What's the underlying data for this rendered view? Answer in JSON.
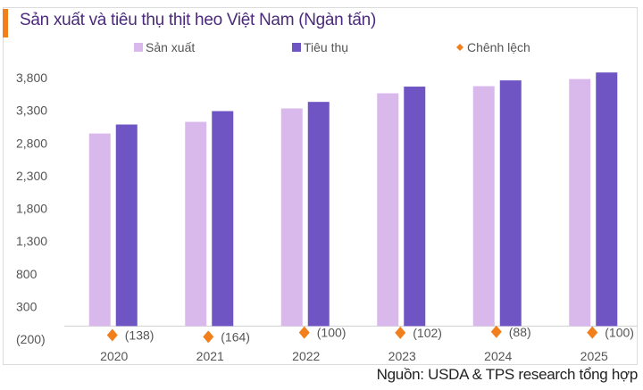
{
  "chart_data": {
    "type": "bar",
    "title": "Sản xuất và tiêu thụ thịt heo Việt Nam (Ngàn tấn)",
    "source": "Nguồn: USDA & TPS research tổng hợp",
    "categories": [
      "2020",
      "2021",
      "2022",
      "2023",
      "2024",
      "2025"
    ],
    "series": [
      {
        "name": "Sản xuất",
        "kind": "bar",
        "color": "#d9b9ec",
        "values": [
          2945,
          3124,
          3329,
          3561,
          3670,
          3779
        ]
      },
      {
        "name": "Tiêu thụ",
        "kind": "bar",
        "color": "#6f55c3",
        "values": [
          3083,
          3288,
          3429,
          3663,
          3758,
          3879
        ]
      },
      {
        "name": "Chênh lệch",
        "kind": "marker",
        "color": "#f07f1c",
        "values": [
          -138,
          -164,
          -100,
          -102,
          -88,
          -100
        ],
        "labels": [
          "(138)",
          "(164)",
          "(100)",
          "(102)",
          "(88)",
          "(100)"
        ]
      }
    ],
    "yticks": [
      -200,
      300,
      800,
      1300,
      1800,
      2300,
      2800,
      3300,
      3800
    ],
    "ytick_labels": [
      "(200)",
      "300",
      "800",
      "1,300",
      "1,800",
      "2,300",
      "2,800",
      "3,300",
      "3,800"
    ],
    "ylim": [
      -200,
      3800
    ],
    "grid": false,
    "legend": "top"
  }
}
